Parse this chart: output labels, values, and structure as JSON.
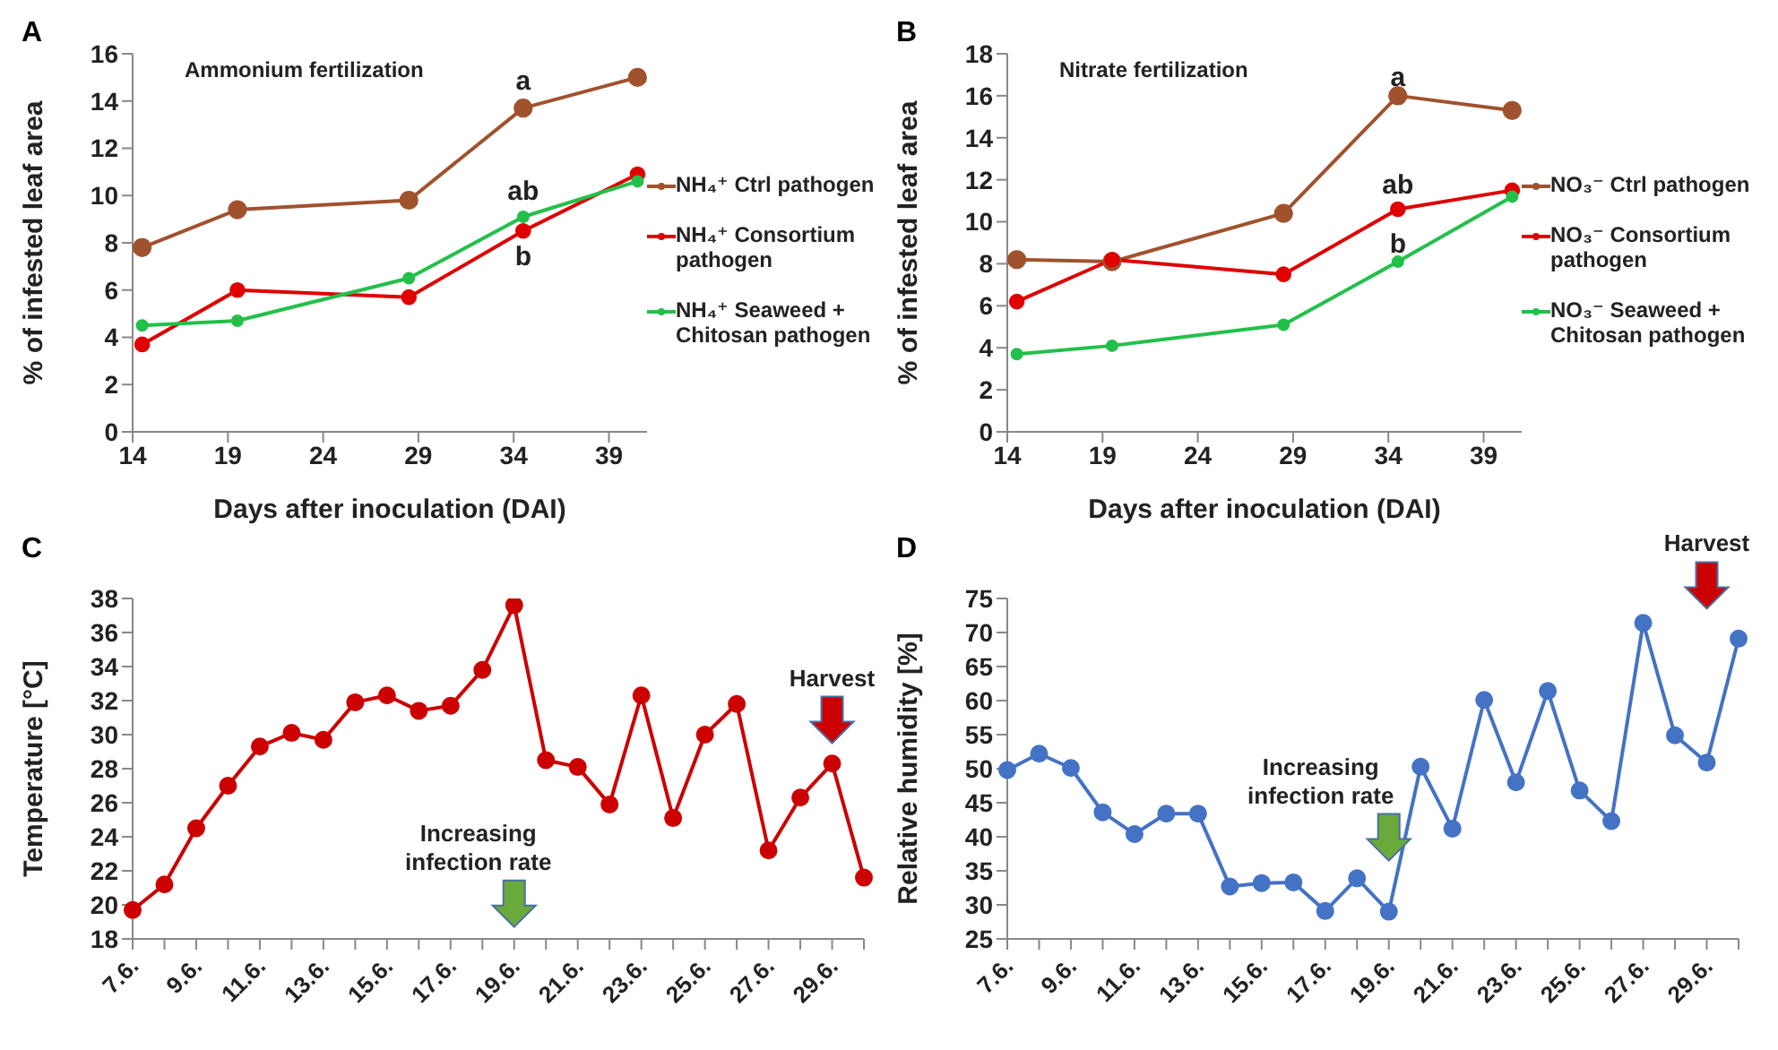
{
  "chart_data": [
    {
      "type": "line",
      "title": "A",
      "xlabel": "Days after inoculation (DAI)",
      "ylabel": "% of infested leaf area",
      "x": [
        14.5,
        19.5,
        28.5,
        34.5,
        40.5
      ],
      "xlim": [
        14,
        41
      ],
      "xticks": [
        14,
        19,
        24,
        29,
        34,
        39
      ],
      "ylim": [
        0,
        16
      ],
      "yticks": [
        0,
        2,
        4,
        6,
        8,
        10,
        12,
        14,
        16
      ],
      "legend": "right",
      "marker": "circle",
      "series": [
        {
          "name": "NH₄⁺ Ctrl pathogen",
          "color": "#a0522d",
          "values": [
            7.8,
            9.4,
            9.8,
            13.7,
            15.0
          ]
        },
        {
          "name": "NH₄⁺ Consortium pathogen",
          "color": "#e00000",
          "values": [
            3.7,
            6.0,
            5.7,
            8.5,
            10.9
          ]
        },
        {
          "name": "NH₄⁺ Seaweed + Chitosan pathogen",
          "color": "#22c04a",
          "values": [
            4.5,
            4.7,
            6.5,
            9.1,
            10.6
          ]
        }
      ],
      "annotations": [
        "Ammonium fertilization",
        "a",
        "ab",
        "b"
      ]
    },
    {
      "type": "line",
      "title": "B",
      "xlabel": "Days after inoculation (DAI)",
      "ylabel": "% of infested leaf area",
      "x": [
        14.5,
        19.5,
        28.5,
        34.5,
        40.5
      ],
      "xlim": [
        14,
        41
      ],
      "xticks": [
        14,
        19,
        24,
        29,
        34,
        39
      ],
      "ylim": [
        0,
        18
      ],
      "yticks": [
        0,
        2,
        4,
        6,
        8,
        10,
        12,
        14,
        16,
        18
      ],
      "legend": "right",
      "marker": "circle",
      "series": [
        {
          "name": "NO₃⁻ Ctrl pathogen",
          "color": "#a0522d",
          "values": [
            8.2,
            8.1,
            10.4,
            16.0,
            15.3
          ]
        },
        {
          "name": "NO₃⁻ Consortium pathogen",
          "color": "#e00000",
          "values": [
            6.2,
            8.2,
            7.5,
            10.6,
            11.5
          ]
        },
        {
          "name": "NO₃⁻ Seaweed + Chitosan pathogen",
          "color": "#22c04a",
          "values": [
            3.7,
            4.1,
            5.1,
            8.1,
            11.2
          ]
        }
      ],
      "annotations": [
        "Nitrate fertilization",
        "a",
        "ab",
        "b"
      ]
    },
    {
      "type": "line",
      "title": "C",
      "ylabel": "Temperature [°C]",
      "categories": [
        "7.6.",
        null,
        "9.6.",
        null,
        "11.6.",
        null,
        "13.6.",
        null,
        "15.6.",
        null,
        "17.6.",
        null,
        "19.6.",
        null,
        "21.6.",
        null,
        "23.6.",
        null,
        "25.6.",
        null,
        "27.6.",
        null,
        "29.6.",
        null
      ],
      "ylim": [
        18,
        38
      ],
      "yticks": [
        18,
        20,
        22,
        24,
        26,
        28,
        30,
        32,
        34,
        36,
        38
      ],
      "marker": "circle",
      "series": [
        {
          "color": "#cc0000",
          "values": [
            19.7,
            21.2,
            24.5,
            27.0,
            29.3,
            30.1,
            29.7,
            31.9,
            32.3,
            31.4,
            31.7,
            33.8,
            37.6,
            28.5,
            28.1,
            25.9,
            32.3,
            25.1,
            30.0,
            31.8,
            23.2,
            26.3,
            28.3,
            21.6
          ]
        }
      ],
      "annotations": [
        "Increasing infection rate",
        "Harvest"
      ]
    },
    {
      "type": "line",
      "title": "D",
      "ylabel": "Relative humidity [%]",
      "categories": [
        "7.6.",
        null,
        "9.6.",
        null,
        "11.6.",
        null,
        "13.6.",
        null,
        "15.6.",
        null,
        "17.6.",
        null,
        "19.6.",
        null,
        "21.6.",
        null,
        "23.6.",
        null,
        "25.6.",
        null,
        "27.6.",
        null,
        "29.6.",
        null
      ],
      "ylim": [
        25,
        75
      ],
      "yticks": [
        25,
        30,
        35,
        40,
        45,
        50,
        55,
        60,
        65,
        70,
        75
      ],
      "marker": "circle",
      "series": [
        {
          "color": "#4472c4",
          "values": [
            49.8,
            52.2,
            50.1,
            43.6,
            40.4,
            43.4,
            43.4,
            32.7,
            33.2,
            33.3,
            29.1,
            33.9,
            29.0,
            50.3,
            41.2,
            60.1,
            48.0,
            61.4,
            46.8,
            42.3,
            71.4,
            54.9,
            50.9,
            69.1
          ]
        }
      ],
      "annotations": [
        "Increasing infection rate",
        "Harvest"
      ]
    }
  ]
}
